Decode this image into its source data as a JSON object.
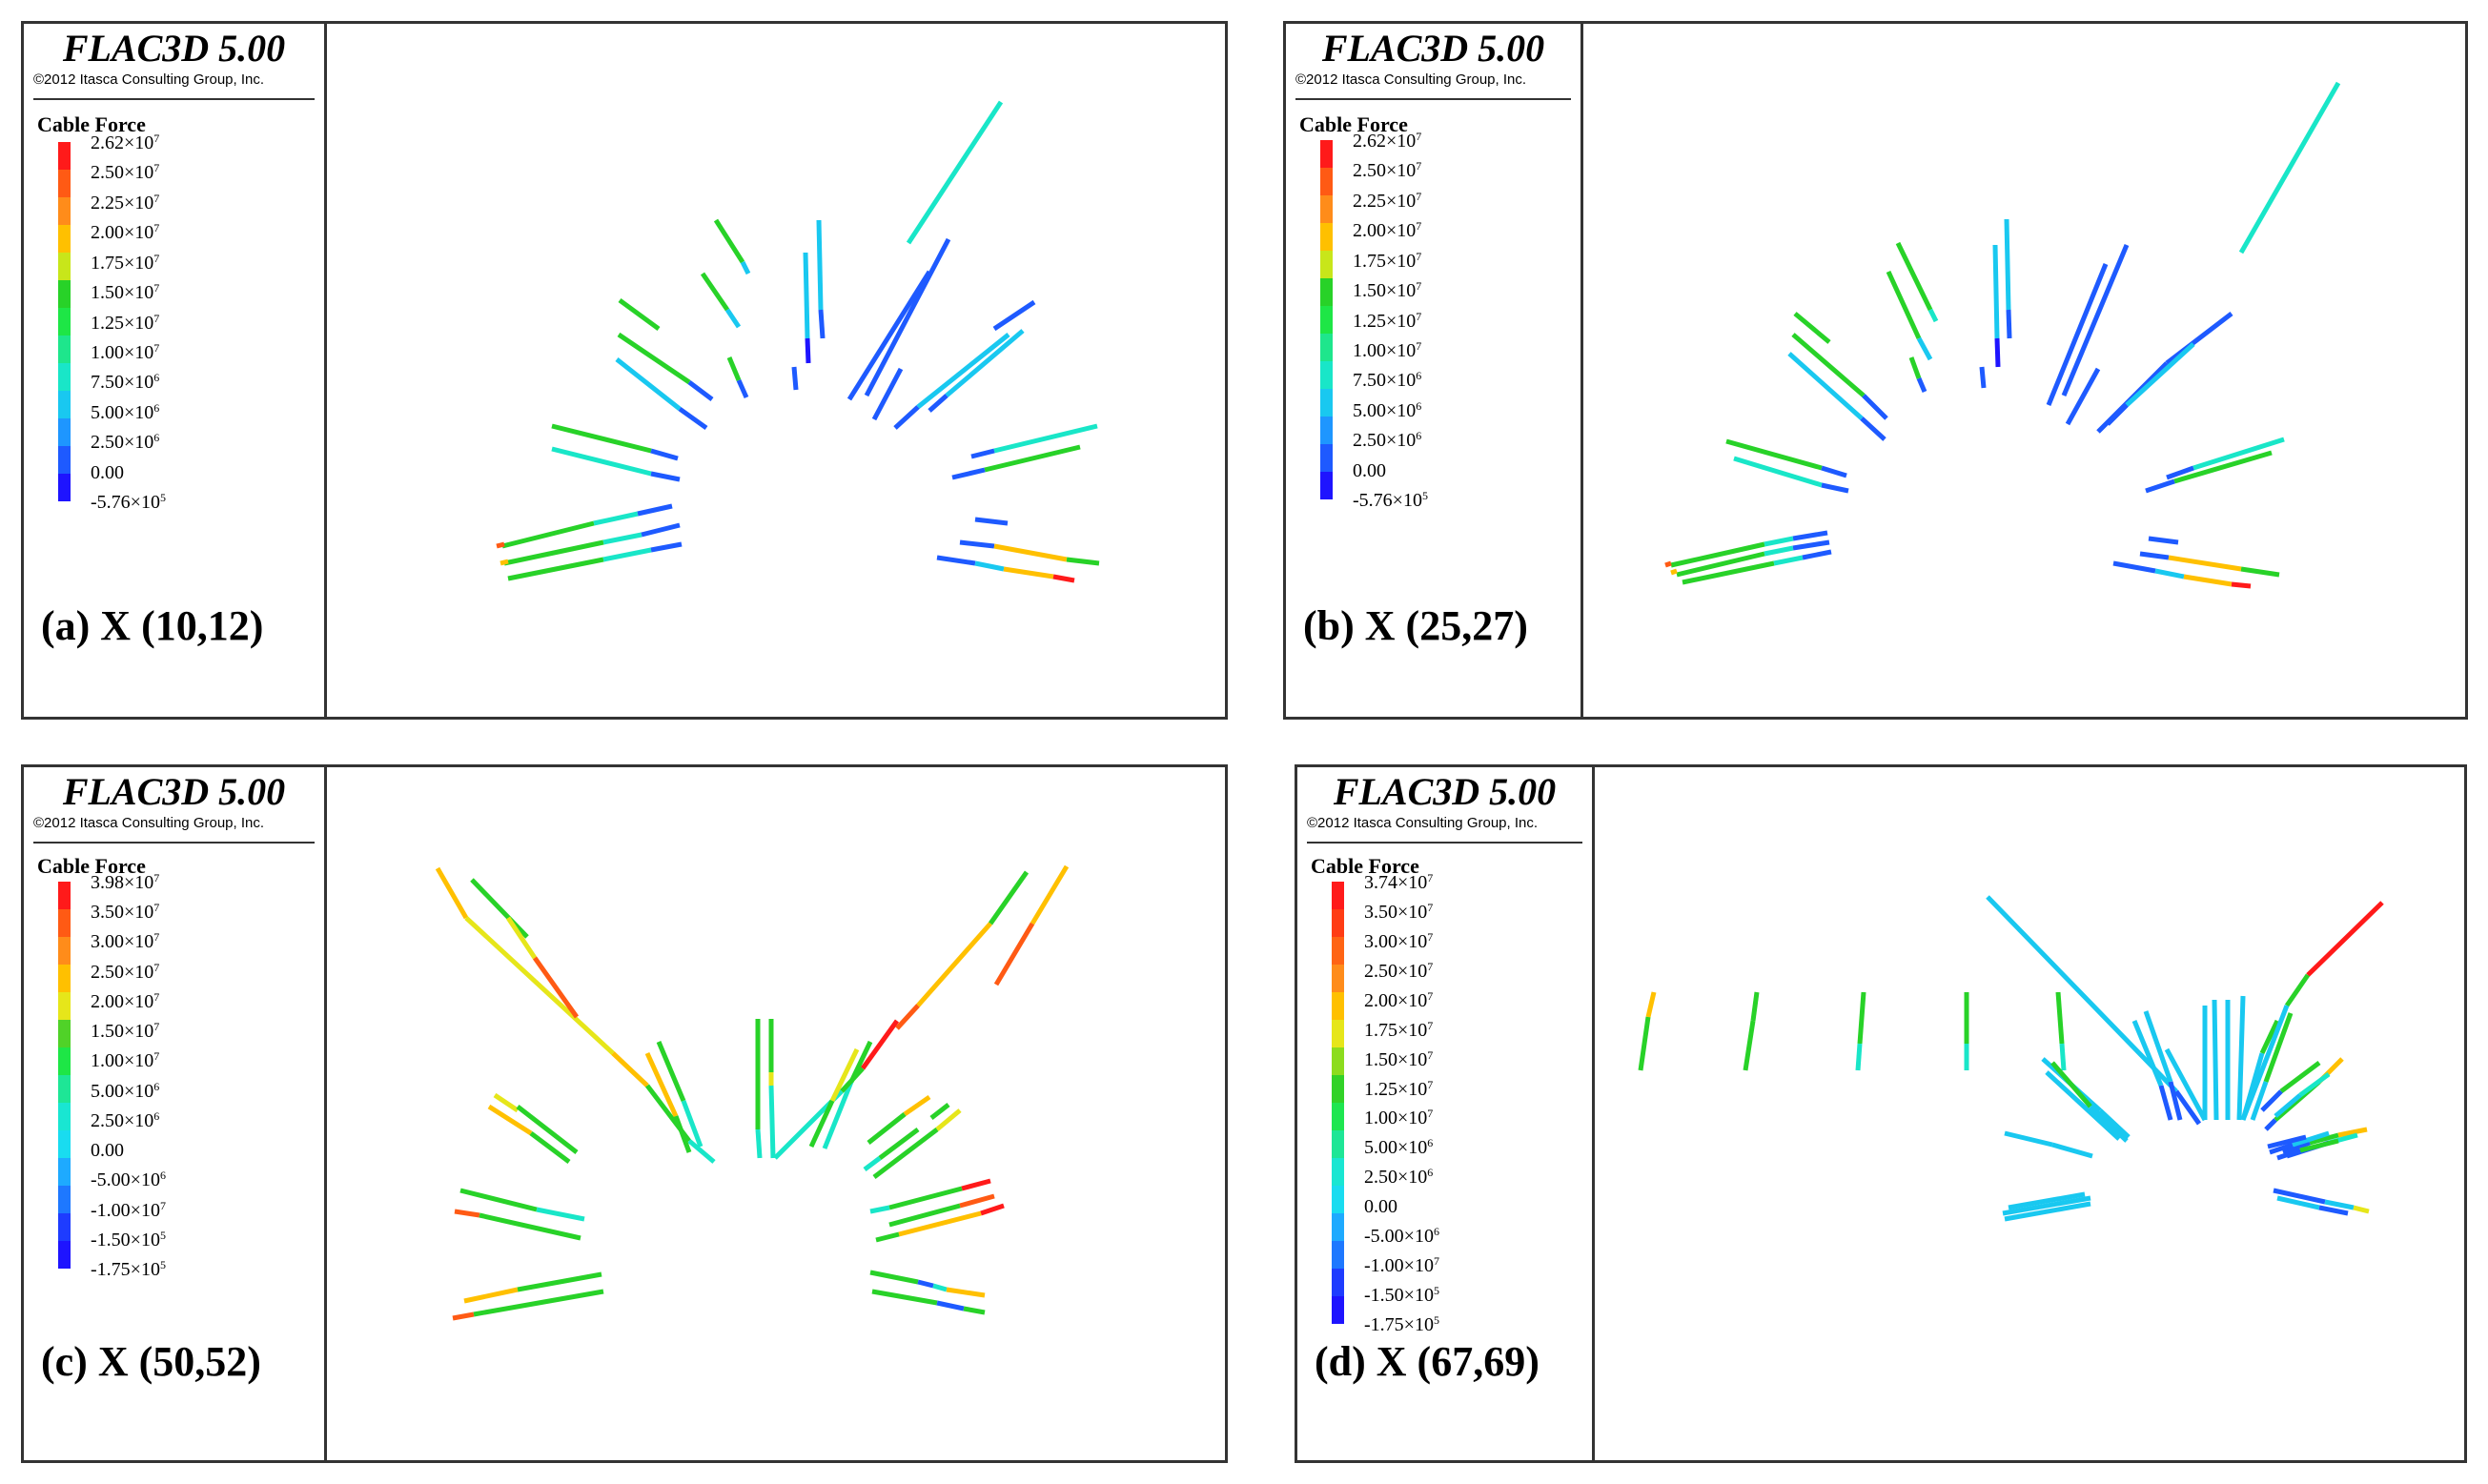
{
  "panels": [
    {
      "app_title": "FLAC3D 5.00",
      "copyright": "©2012 Itasca Consulting Group, Inc.",
      "legend_title": "Cable Force",
      "legend_ticks": [
        "2.62×10^7",
        "2.50×10^7",
        "2.25×10^7",
        "2.00×10^7",
        "1.75×10^7",
        "1.50×10^7",
        "1.25×10^7",
        "1.00×10^7",
        "7.50×10^6",
        "5.00×10^6",
        "2.50×10^6",
        "0.00",
        "-5.76×10^5"
      ],
      "legend_colors": [
        "#ff1a1a",
        "#ff5a14",
        "#ff8c1a",
        "#ffc000",
        "#c8e61a",
        "#28d228",
        "#1ee646",
        "#1ee68c",
        "#19e6c8",
        "#19c8f0",
        "#1e96ff",
        "#1e5aff",
        "#1e14ff"
      ],
      "caption": "(a) X (10,12)"
    },
    {
      "app_title": "FLAC3D 5.00",
      "copyright": "©2012 Itasca Consulting Group, Inc.",
      "legend_title": "Cable Force",
      "legend_ticks": [
        "2.62×10^7",
        "2.50×10^7",
        "2.25×10^7",
        "2.00×10^7",
        "1.75×10^7",
        "1.50×10^7",
        "1.25×10^7",
        "1.00×10^7",
        "7.50×10^6",
        "5.00×10^6",
        "2.50×10^6",
        "0.00",
        "-5.76×10^5"
      ],
      "legend_colors": [
        "#ff1a1a",
        "#ff5a14",
        "#ff8c1a",
        "#ffc000",
        "#c8e61a",
        "#28d228",
        "#1ee646",
        "#1ee68c",
        "#19e6c8",
        "#19c8f0",
        "#1e96ff",
        "#1e5aff",
        "#1e14ff"
      ],
      "caption": "(b) X (25,27)"
    },
    {
      "app_title": "FLAC3D 5.00",
      "copyright": "©2012 Itasca Consulting Group, Inc.",
      "legend_title": "Cable Force",
      "legend_ticks": [
        "3.98×10^7",
        "3.50×10^7",
        "3.00×10^7",
        "2.50×10^7",
        "2.00×10^7",
        "1.50×10^7",
        "1.00×10^7",
        "5.00×10^6",
        "2.50×10^6",
        "0.00",
        "-5.00×10^6",
        "-1.00×10^7",
        "-1.50×10^5",
        "-1.75×10^5"
      ],
      "legend_colors": [
        "#ff1a1a",
        "#ff5a14",
        "#ff8c1a",
        "#ffc000",
        "#e6e61a",
        "#50d228",
        "#1ee646",
        "#1ee696",
        "#19e6d2",
        "#19dcf0",
        "#1eaaff",
        "#1e78ff",
        "#1e3cff",
        "#1e14ff"
      ],
      "caption": "(c) X (50,52)"
    },
    {
      "app_title": "FLAC3D 5.00",
      "copyright": "©2012 Itasca Consulting Group, Inc.",
      "legend_title": "Cable Force",
      "legend_ticks": [
        "3.74×10^7",
        "3.50×10^7",
        "3.00×10^7",
        "2.50×10^7",
        "2.00×10^7",
        "1.75×10^7",
        "1.50×10^7",
        "1.25×10^7",
        "1.00×10^7",
        "5.00×10^6",
        "2.50×10^6",
        "0.00",
        "-5.00×10^6",
        "-1.00×10^7",
        "-1.50×10^5",
        "-1.75×10^5"
      ],
      "legend_colors": [
        "#ff1a1a",
        "#ff3c14",
        "#ff6414",
        "#ff8c1a",
        "#ffc000",
        "#e6e61a",
        "#8cdc1e",
        "#32d228",
        "#1ee650",
        "#1ee696",
        "#19e6d2",
        "#19dcf0",
        "#1eaaff",
        "#1e78ff",
        "#1e3cff",
        "#1e14ff"
      ],
      "caption": "(d) X (67,69)"
    }
  ]
}
